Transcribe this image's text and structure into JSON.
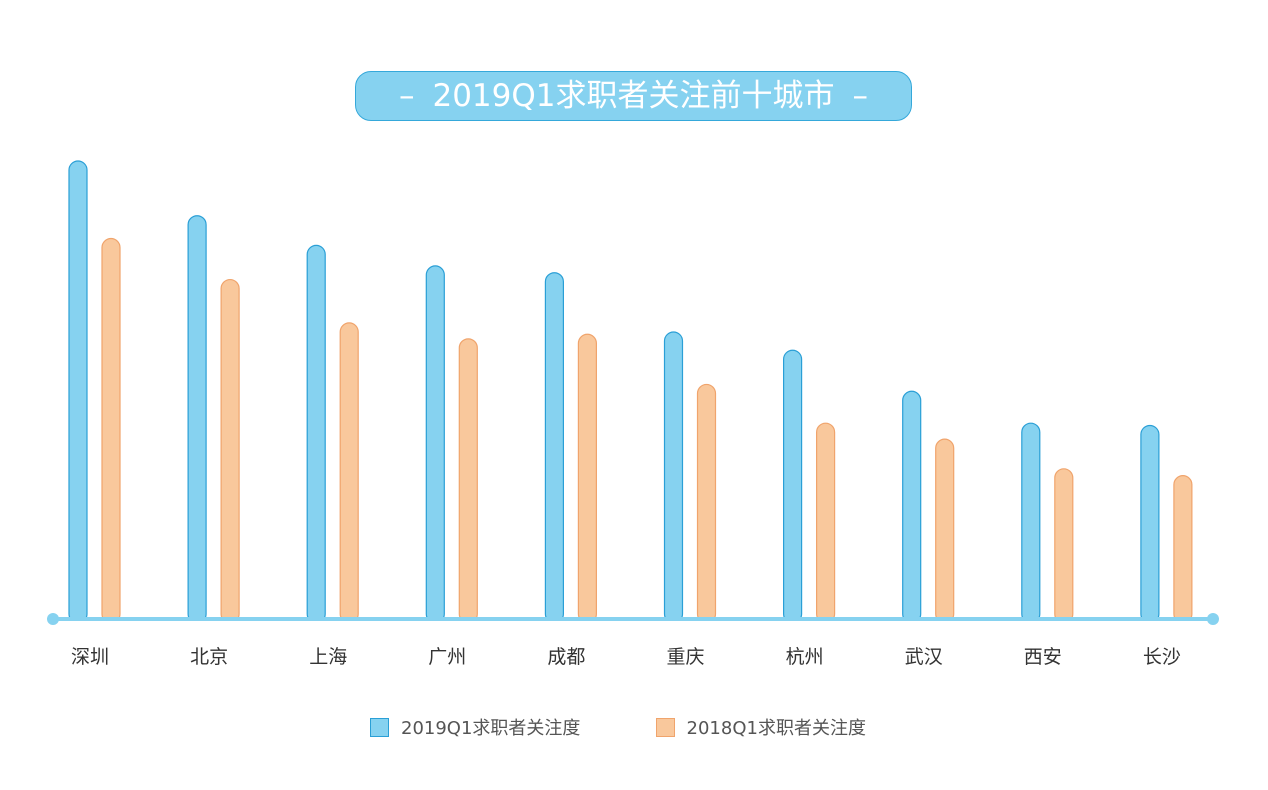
{
  "title": "2019Q1求职者关注前十城市",
  "title_decoration": "–",
  "colors": {
    "series_2019_fill": "#86d2f0",
    "series_2019_stroke": "#2a9fd6",
    "series_2018_fill": "#f9c89c",
    "series_2018_stroke": "#f0a46c",
    "axis": "#86d2f0",
    "title_bg": "#86d2f0"
  },
  "chart_data": {
    "type": "bar",
    "title": "2019Q1求职者关注前十城市",
    "categories": [
      "深圳",
      "北京",
      "上海",
      "广州",
      "成都",
      "重庆",
      "杭州",
      "武汉",
      "西安",
      "长沙"
    ],
    "series": [
      {
        "name": "2019Q1求职者关注度",
        "values": [
          100,
          88,
          81.5,
          77,
          75.5,
          62.5,
          58.5,
          49.5,
          42.5,
          42
        ]
      },
      {
        "name": "2018Q1求职者关注度",
        "values": [
          83,
          74,
          64.5,
          61,
          62,
          51,
          42.5,
          39,
          32.5,
          31
        ]
      }
    ],
    "value_axis_visible": false,
    "ylim": [
      0,
      100
    ],
    "grid": false,
    "legend_position": "bottom"
  }
}
